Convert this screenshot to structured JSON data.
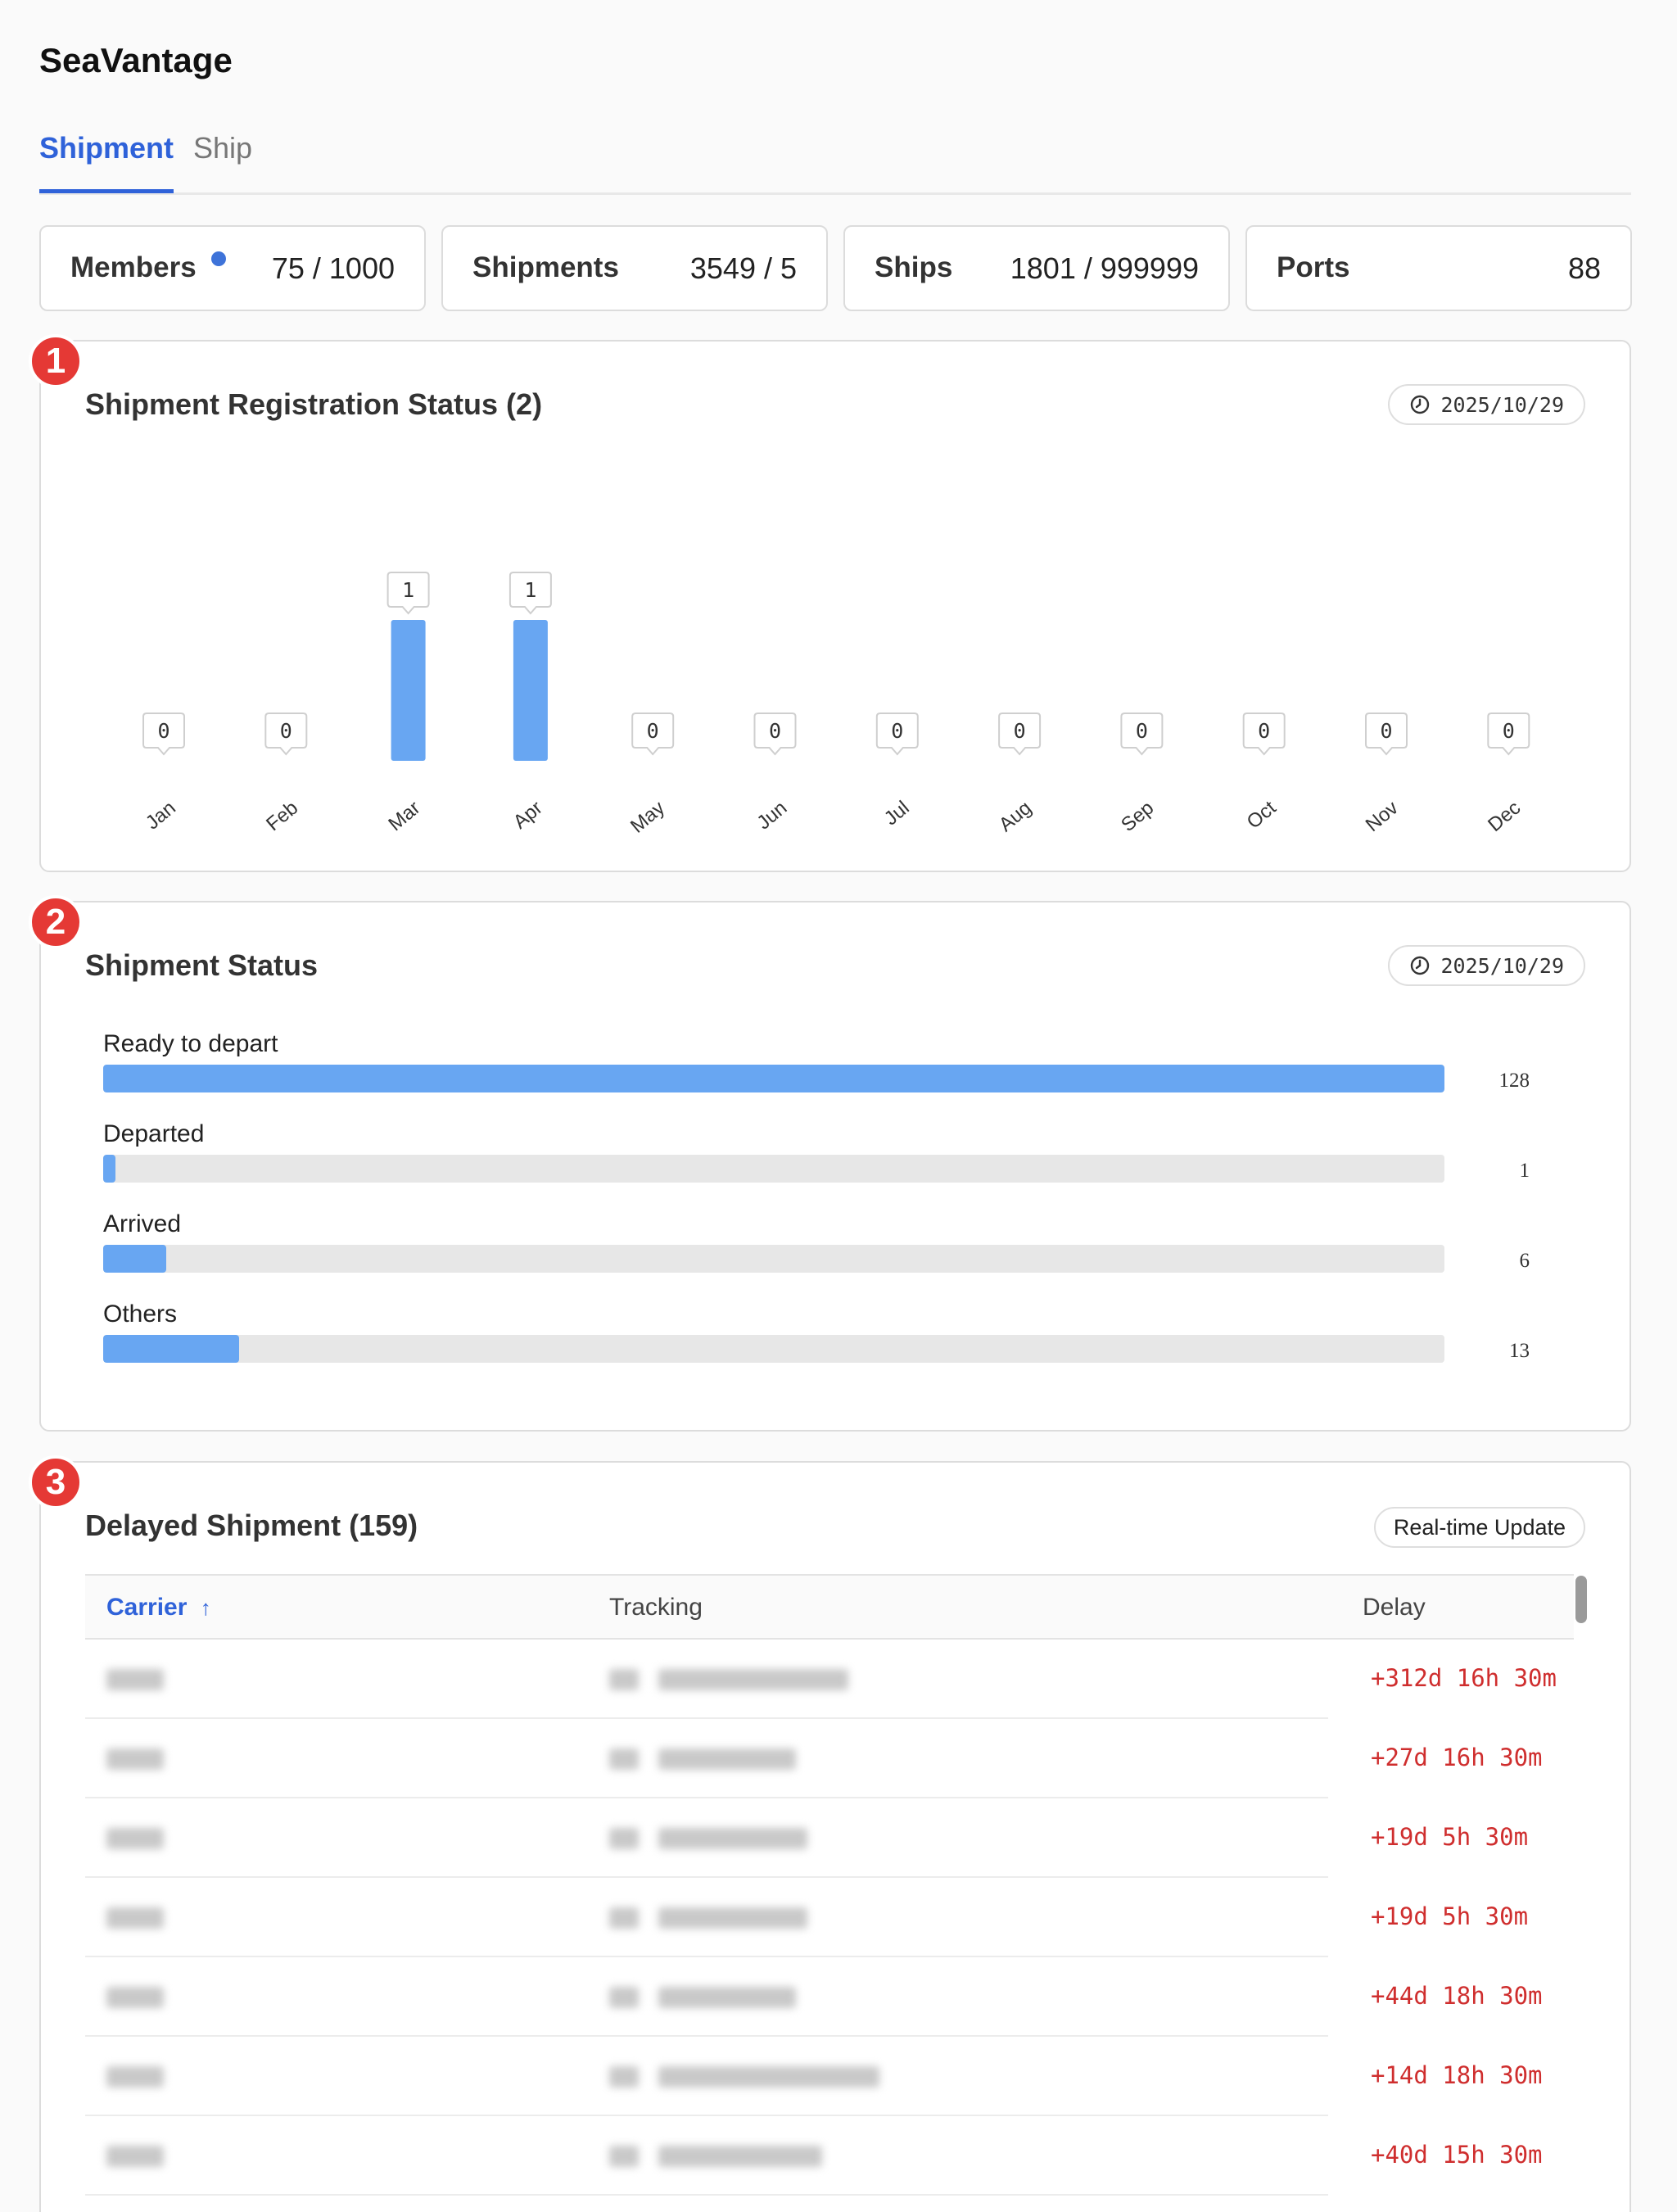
{
  "app": {
    "title": "SeaVantage"
  },
  "tabs": [
    {
      "label": "Shipment",
      "active": true
    },
    {
      "label": "Ship",
      "active": false
    }
  ],
  "stats": [
    {
      "label": "Members",
      "value": "75 / 1000",
      "dot": true
    },
    {
      "label": "Shipments",
      "value": "3549 / 5",
      "dot": false
    },
    {
      "label": "Ships",
      "value": "1801 / 999999",
      "dot": false
    },
    {
      "label": "Ports",
      "value": "88",
      "dot": false
    }
  ],
  "badges": [
    "1",
    "2",
    "3"
  ],
  "registration": {
    "title": "Shipment Registration Status (2)",
    "date": "2025/10/29",
    "icon": "clock-icon"
  },
  "chart_data": {
    "type": "bar",
    "title": "Shipment Registration Status (2)",
    "categories": [
      "Jan",
      "Feb",
      "Mar",
      "Apr",
      "May",
      "Jun",
      "Jul",
      "Aug",
      "Sep",
      "Oct",
      "Nov",
      "Dec"
    ],
    "values": [
      0,
      0,
      1,
      1,
      0,
      0,
      0,
      0,
      0,
      0,
      0,
      0
    ],
    "ylim": [
      0,
      1
    ],
    "grid": false,
    "colors": {
      "bar": "#68a6f2"
    }
  },
  "status": {
    "title": "Shipment Status",
    "date": "2025/10/29",
    "max": 128,
    "items": [
      {
        "label": "Ready to depart",
        "count": "128",
        "value": 128
      },
      {
        "label": "Departed",
        "count": "1",
        "value": 1
      },
      {
        "label": "Arrived",
        "count": "6",
        "value": 6
      },
      {
        "label": "Others",
        "count": "13",
        "value": 13
      }
    ]
  },
  "delayed": {
    "title": "Delayed Shipment (159)",
    "realtime_label": "Real-time Update",
    "columns": {
      "carrier": "Carrier",
      "sort_icon": "↑",
      "tracking": "Tracking",
      "delay": "Delay"
    },
    "rows": [
      {
        "delay": "+312d 16h 30m"
      },
      {
        "delay": "+27d 16h 30m"
      },
      {
        "delay": "+19d 5h 30m"
      },
      {
        "delay": "+19d 5h 30m"
      },
      {
        "delay": "+44d 18h 30m"
      },
      {
        "delay": "+14d 18h 30m"
      },
      {
        "delay": "+40d 15h 30m"
      }
    ]
  },
  "colors": {
    "accent": "#2f62d9",
    "bar": "#68a6f2",
    "delay": "#cf2e2e",
    "badge": "#e53935"
  }
}
